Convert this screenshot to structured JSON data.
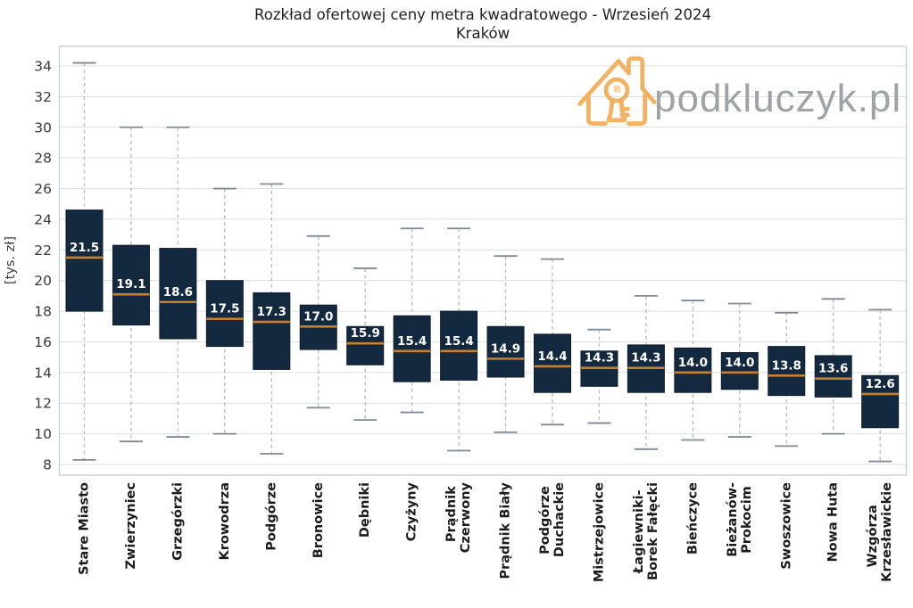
{
  "title": {
    "line1": "Rozkład ofertowej ceny metra kwadratowego - Wrzesień 2024",
    "line2": "Kraków"
  },
  "watermark": {
    "text": "podkluczyk.pl"
  },
  "chart_data": {
    "type": "box",
    "title": "Rozkład ofertowej ceny metra kwadratowego - Wrzesień 2024",
    "subtitle": "Kraków",
    "ylabel": "[tys. zł]",
    "ylim": [
      7.3,
      35.3
    ],
    "yticks": [
      8,
      10,
      12,
      14,
      16,
      18,
      20,
      22,
      24,
      26,
      28,
      30,
      32,
      34
    ],
    "grid": "horizontal-only",
    "legend": "none",
    "median_labels_shown": true,
    "categories": [
      "Stare Miasto",
      "Zwierzyniec",
      "Grzegórzki",
      "Krowodrza",
      "Podgórze",
      "Bronowice",
      "Dębniki",
      "Czyżyny",
      "Prądnik Czerwony",
      "Prądnik Biały",
      "Podgórze Duchackie",
      "Mistrzejowice",
      "Łagiewniki-Borek Fałęcki",
      "Bieńczyce",
      "Bieżanów-Prokocim",
      "Swoszowice",
      "Nowa Huta",
      "Wzgórza Krzesławickie"
    ],
    "boxes": [
      {
        "name": "Stare Miasto",
        "label": "Stare Miasto",
        "whisker_low": 8.3,
        "q1": 18.0,
        "median": 21.5,
        "q3": 24.6,
        "whisker_high": 34.2
      },
      {
        "name": "Zwierzyniec",
        "label": "Zwierzyniec",
        "whisker_low": 9.5,
        "q1": 17.1,
        "median": 19.1,
        "q3": 22.3,
        "whisker_high": 30.0
      },
      {
        "name": "Grzegórzki",
        "label": "Grzegórzki",
        "whisker_low": 9.8,
        "q1": 16.2,
        "median": 18.6,
        "q3": 22.1,
        "whisker_high": 30.0
      },
      {
        "name": "Krowodrza",
        "label": "Krowodrza",
        "whisker_low": 10.0,
        "q1": 15.7,
        "median": 17.5,
        "q3": 20.0,
        "whisker_high": 26.0
      },
      {
        "name": "Podgórze",
        "label": "Podgórze",
        "whisker_low": 8.7,
        "q1": 14.2,
        "median": 17.3,
        "q3": 19.2,
        "whisker_high": 26.3
      },
      {
        "name": "Bronowice",
        "label": "Bronowice",
        "whisker_low": 11.7,
        "q1": 15.5,
        "median": 17.0,
        "q3": 18.4,
        "whisker_high": 22.9
      },
      {
        "name": "Dębniki",
        "label": "Dębniki",
        "whisker_low": 10.9,
        "q1": 14.5,
        "median": 15.9,
        "q3": 17.0,
        "whisker_high": 20.8
      },
      {
        "name": "Czyżyny",
        "label": "Czyżyny",
        "whisker_low": 11.4,
        "q1": 13.4,
        "median": 15.4,
        "q3": 17.7,
        "whisker_high": 23.4
      },
      {
        "name": "Prądnik Czerwony",
        "label": "Prądnik\nCzerwony",
        "whisker_low": 8.9,
        "q1": 13.5,
        "median": 15.4,
        "q3": 18.0,
        "whisker_high": 23.4
      },
      {
        "name": "Prądnik Biały",
        "label": "Prądnik Biały",
        "whisker_low": 10.1,
        "q1": 13.7,
        "median": 14.9,
        "q3": 17.0,
        "whisker_high": 21.6
      },
      {
        "name": "Podgórze Duchackie",
        "label": "Podgórze\nDuchackie",
        "whisker_low": 10.6,
        "q1": 12.7,
        "median": 14.4,
        "q3": 16.5,
        "whisker_high": 21.4
      },
      {
        "name": "Mistrzejowice",
        "label": "Mistrzejowice",
        "whisker_low": 10.7,
        "q1": 13.1,
        "median": 14.3,
        "q3": 15.4,
        "whisker_high": 16.8
      },
      {
        "name": "Łagiewniki-Borek Fałęcki",
        "label": "Łagiewniki-\nBorek Fałęcki",
        "whisker_low": 9.0,
        "q1": 12.7,
        "median": 14.3,
        "q3": 15.8,
        "whisker_high": 19.0
      },
      {
        "name": "Bieńczyce",
        "label": "Bieńczyce",
        "whisker_low": 9.6,
        "q1": 12.7,
        "median": 14.0,
        "q3": 15.6,
        "whisker_high": 18.7
      },
      {
        "name": "Bieżanów-Prokocim",
        "label": "Bieżanów-\nProkocim",
        "whisker_low": 9.8,
        "q1": 12.9,
        "median": 14.0,
        "q3": 15.3,
        "whisker_high": 18.5
      },
      {
        "name": "Swoszowice",
        "label": "Swoszowice",
        "whisker_low": 9.2,
        "q1": 12.5,
        "median": 13.8,
        "q3": 15.7,
        "whisker_high": 17.9
      },
      {
        "name": "Nowa Huta",
        "label": "Nowa Huta",
        "whisker_low": 10.0,
        "q1": 12.4,
        "median": 13.6,
        "q3": 15.1,
        "whisker_high": 18.8
      },
      {
        "name": "Wzgórza Krzesławickie",
        "label": "Wzgórza\nKrzesławickie",
        "whisker_low": 8.2,
        "q1": 10.4,
        "median": 12.6,
        "q3": 13.8,
        "whisker_high": 18.1
      }
    ]
  },
  "colors": {
    "box_fill": "#13293F",
    "box_stroke": "#0C1C2E",
    "median_line": "#C8802F",
    "median_label_text": "#FFFFFF",
    "whisker_dash": "#B4BBC1",
    "whisker_cap": "#7E8A94",
    "gridline": "#DCDFE2",
    "frame": "#C7D0D8",
    "tick_text": "#3A3A3A",
    "x_label_text": "#1B1B1B",
    "title_text": "#1F1F1F",
    "logo_orange": "#F2AC55",
    "logo_text_gray": "#9EA3A6"
  }
}
